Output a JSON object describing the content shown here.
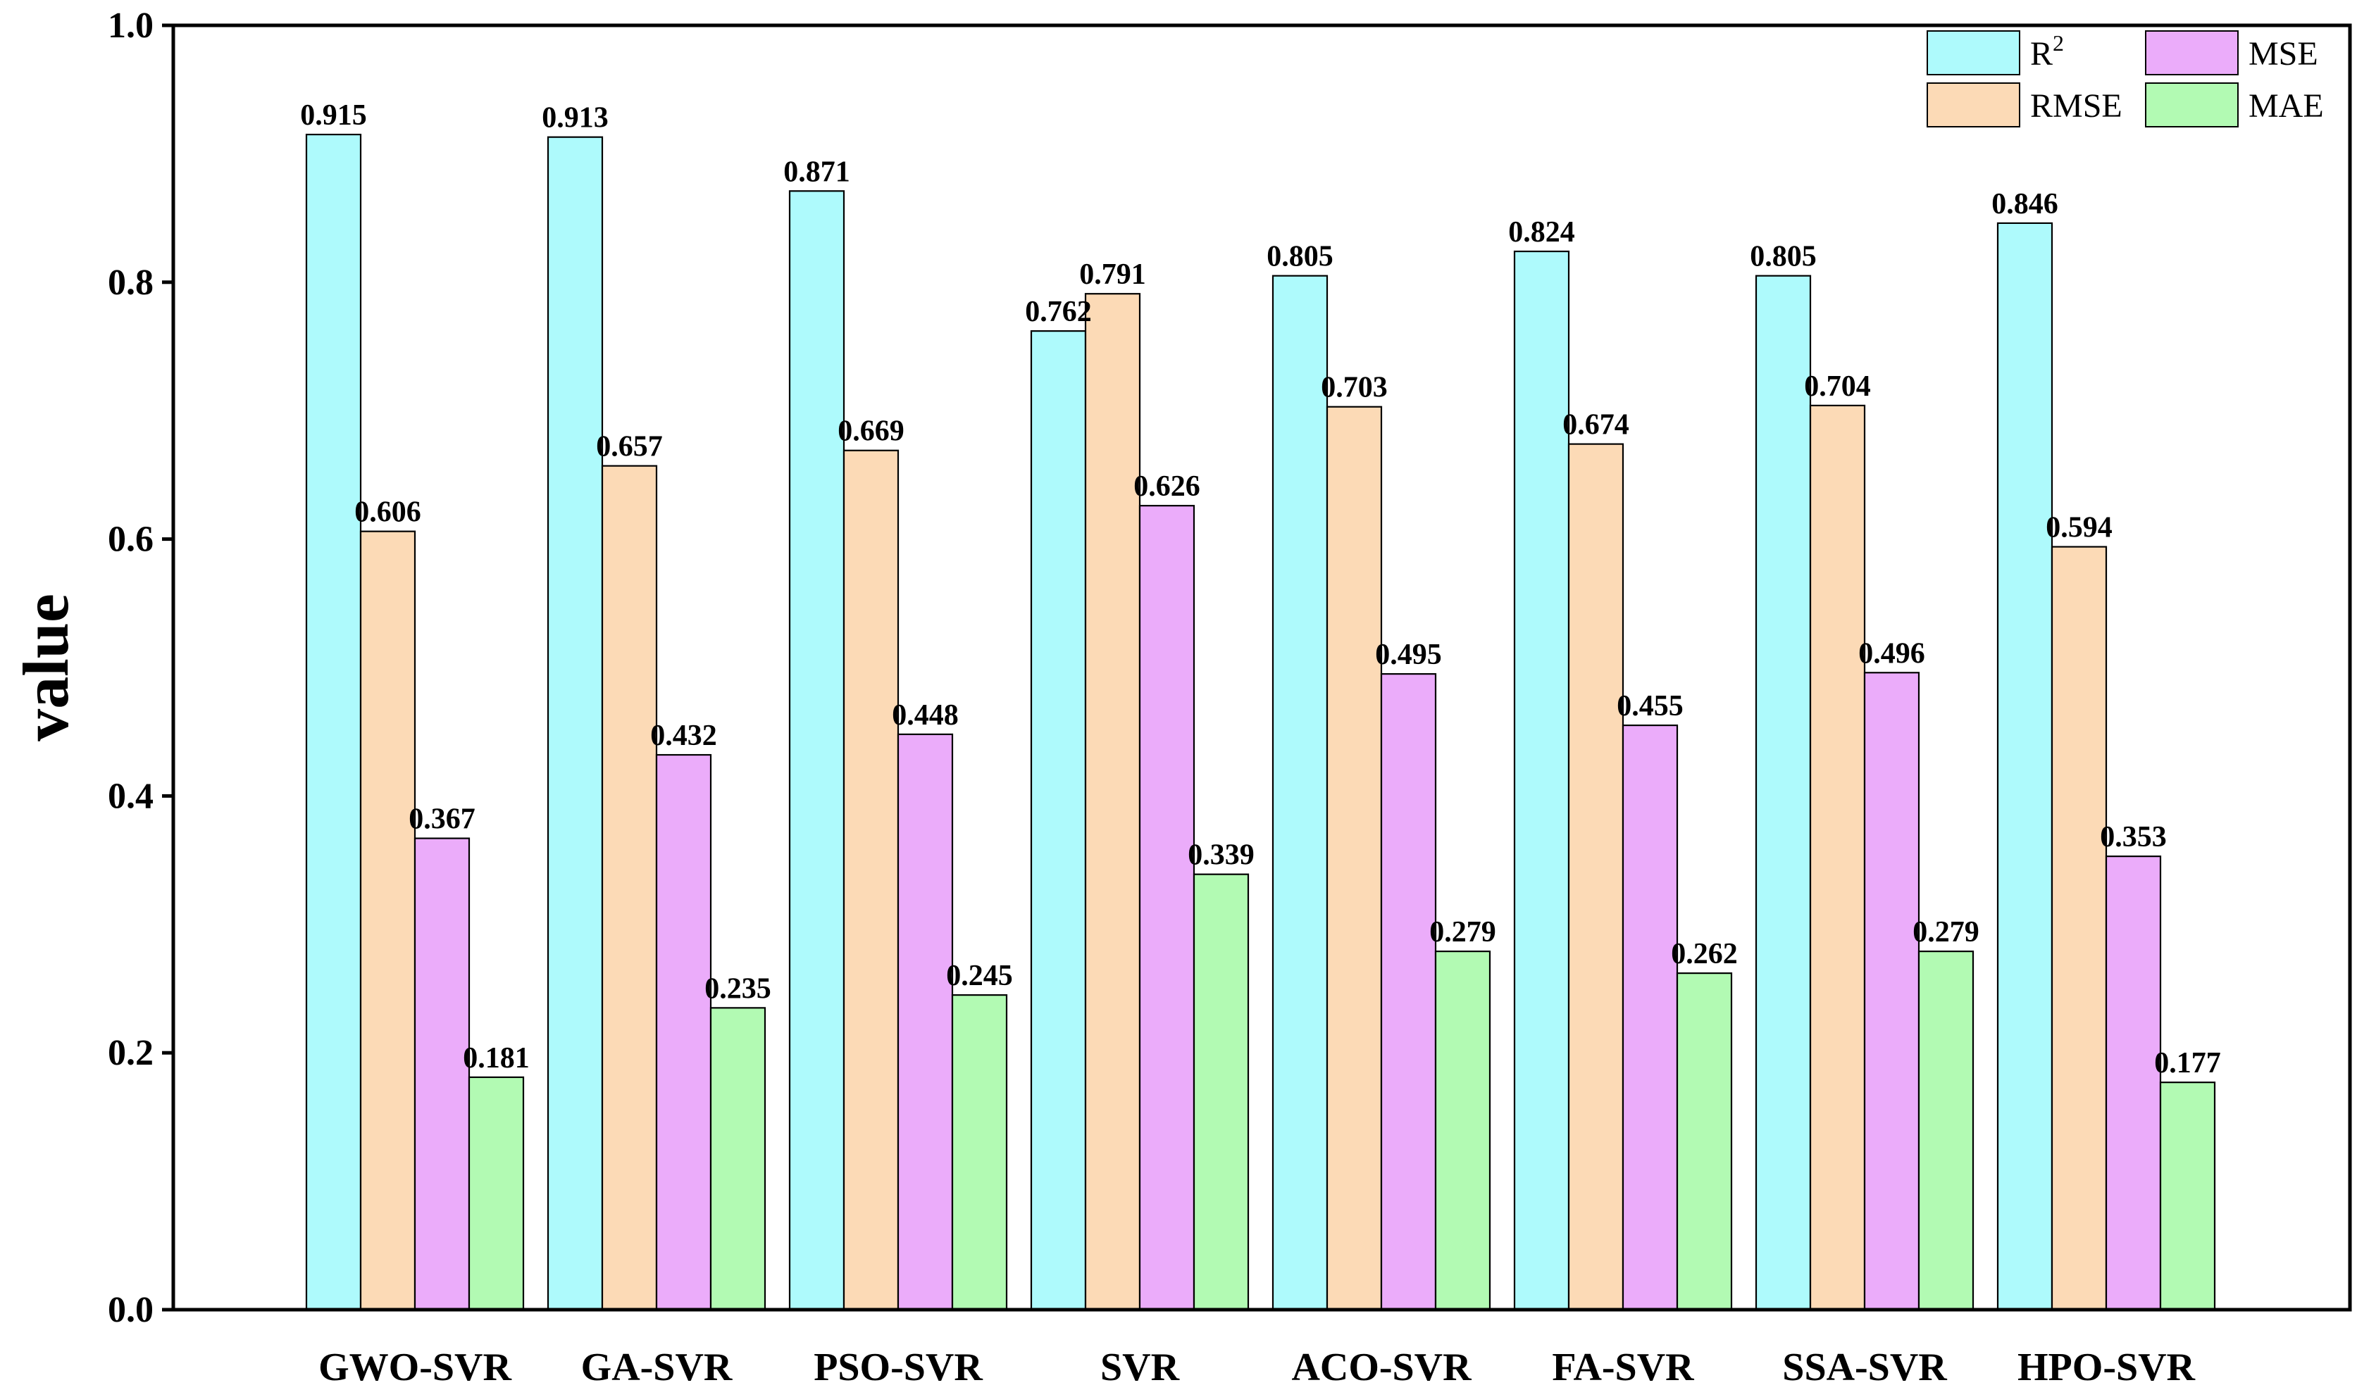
{
  "chart_data": {
    "type": "bar",
    "title": "",
    "xlabel": "",
    "ylabel": "value",
    "ylim": [
      0,
      1.0
    ],
    "yticks": [
      "0.0",
      "0.2",
      "0.4",
      "0.6",
      "0.8",
      "1.0"
    ],
    "grid": false,
    "legend_position": "top-right",
    "categories": [
      "GWO-SVR",
      "GA-SVR",
      "PSO-SVR",
      "SVR",
      "ACO-SVR",
      "FA-SVR",
      "SSA-SVR",
      "HPO-SVR"
    ],
    "series": [
      {
        "name": "R",
        "superscript": "2",
        "color": "#aefafc",
        "values": [
          0.915,
          0.913,
          0.871,
          0.762,
          0.805,
          0.824,
          0.805,
          0.846
        ],
        "labels": [
          "0.915",
          "0.913",
          "0.871",
          "0.762",
          "0.805",
          "0.824",
          "0.805",
          "0.846"
        ]
      },
      {
        "name": "RMSE",
        "superscript": "",
        "color": "#fcdab6",
        "values": [
          0.606,
          0.657,
          0.669,
          0.791,
          0.703,
          0.674,
          0.704,
          0.594
        ],
        "labels": [
          "0.606",
          "0.657",
          "0.669",
          "0.791",
          "0.703",
          "0.674",
          "0.704",
          "0.594"
        ]
      },
      {
        "name": "MSE",
        "superscript": "",
        "color": "#ebacfa",
        "values": [
          0.367,
          0.432,
          0.448,
          0.626,
          0.495,
          0.455,
          0.496,
          0.353
        ],
        "labels": [
          "0.367",
          "0.432",
          "0.448",
          "0.626",
          "0.495",
          "0.455",
          "0.496",
          "0.353"
        ]
      },
      {
        "name": "MAE",
        "superscript": "",
        "color": "#b2fab3",
        "values": [
          0.181,
          0.235,
          0.245,
          0.339,
          0.279,
          0.262,
          0.279,
          0.177
        ],
        "labels": [
          "0.181",
          "0.235",
          "0.245",
          "0.339",
          "0.279",
          "0.262",
          "0.279",
          "0.177"
        ]
      }
    ]
  }
}
